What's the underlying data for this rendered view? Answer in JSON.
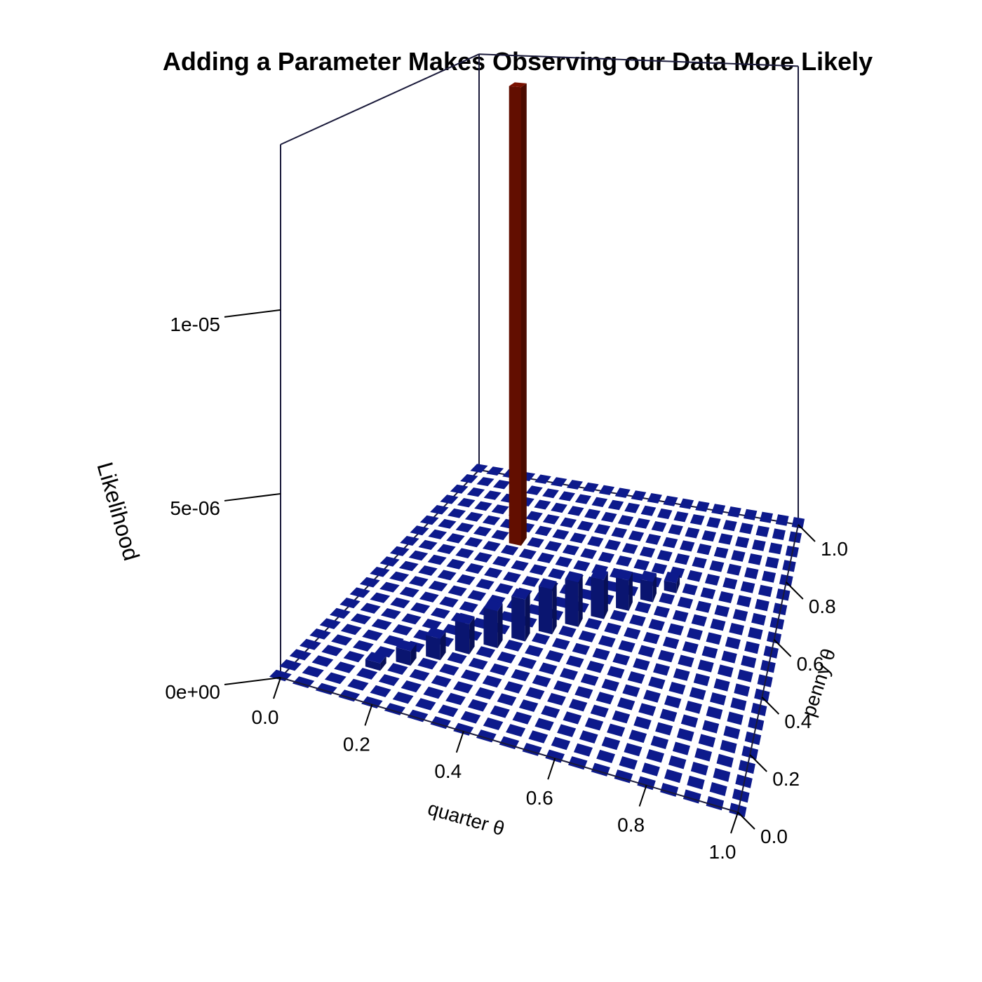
{
  "chart_data": {
    "type": "bar3d",
    "title": "Adding a Parameter Makes Observing our Data More Likely",
    "xlabel": "quarter θ",
    "ylabel": "penny θ",
    "zlabel": "Likelihood",
    "x_ticks": [
      "0.0",
      "0.2",
      "0.4",
      "0.6",
      "0.8",
      "1.0"
    ],
    "y_ticks": [
      "0.0",
      "0.2",
      "0.4",
      "0.6",
      "0.8",
      "1.0"
    ],
    "z_ticks": [
      "0e+00",
      "5e-06",
      "1e-05"
    ],
    "x_range": [
      0,
      1
    ],
    "y_range": [
      0,
      1
    ],
    "z_range": [
      0,
      1.45e-05
    ],
    "grid": {
      "x": [
        0,
        1,
        0.05
      ],
      "y": [
        0,
        1,
        0.05
      ]
    },
    "colors": {
      "grid_bars": "#0d1a8c",
      "highlight_bar": "#7a1100",
      "box": "#1a1a3a"
    },
    "diagonal_series": {
      "name": "",
      "points": [
        {
          "x": 0.15,
          "y": 0.15,
          "z": 2e-07
        },
        {
          "x": 0.2,
          "y": 0.2,
          "z": 4e-07
        },
        {
          "x": 0.25,
          "y": 0.25,
          "z": 6e-07
        },
        {
          "x": 0.3,
          "y": 0.3,
          "z": 8.5e-07
        },
        {
          "x": 0.35,
          "y": 0.35,
          "z": 1.05e-06
        },
        {
          "x": 0.4,
          "y": 0.4,
          "z": 1.2e-06
        },
        {
          "x": 0.45,
          "y": 0.45,
          "z": 1.3e-06
        },
        {
          "x": 0.5,
          "y": 0.5,
          "z": 1.3e-06
        },
        {
          "x": 0.55,
          "y": 0.55,
          "z": 1.15e-06
        },
        {
          "x": 0.6,
          "y": 0.6,
          "z": 9e-07
        },
        {
          "x": 0.65,
          "y": 0.65,
          "z": 6e-07
        },
        {
          "x": 0.7,
          "y": 0.7,
          "z": 3e-07
        }
      ]
    },
    "highlight_bar": {
      "x": 0.25,
      "y": 0.75,
      "z": 1.45e-05
    }
  }
}
